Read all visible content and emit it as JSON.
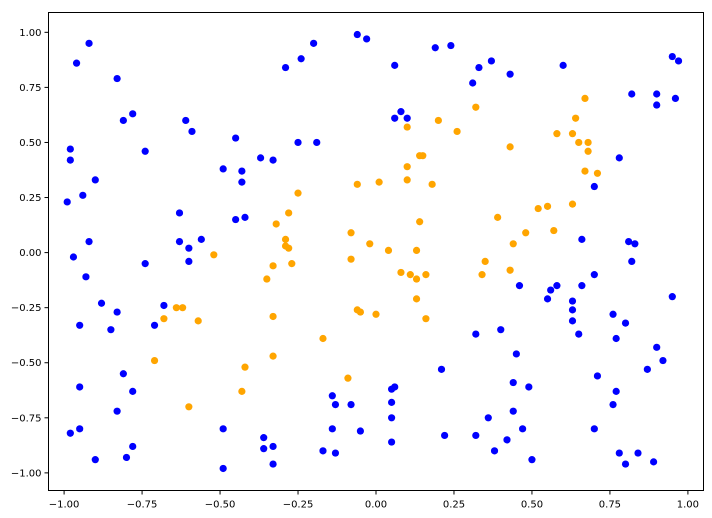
{
  "chart_data": {
    "type": "scatter",
    "title": "",
    "xlabel": "",
    "ylabel": "",
    "xlim": [
      -1.05,
      1.05
    ],
    "ylim": [
      -1.08,
      1.09
    ],
    "grid": false,
    "x_ticks": [
      -1.0,
      -0.75,
      -0.5,
      -0.25,
      0.0,
      0.25,
      0.5,
      0.75,
      1.0
    ],
    "x_tick_labels": [
      "−1.00",
      "−0.75",
      "−0.50",
      "−0.25",
      "0.00",
      "0.25",
      "0.50",
      "0.75",
      "1.00"
    ],
    "y_ticks": [
      -1.0,
      -0.75,
      -0.5,
      -0.25,
      0.0,
      0.25,
      0.5,
      0.75,
      1.0
    ],
    "y_tick_labels": [
      "−1.00",
      "−0.75",
      "−0.50",
      "−0.25",
      "0.00",
      "0.25",
      "0.50",
      "0.75",
      "1.00"
    ],
    "series": [
      {
        "color": "#0000ff",
        "points": [
          [
            -0.92,
            0.95
          ],
          [
            -0.96,
            0.86
          ],
          [
            -0.83,
            0.79
          ],
          [
            -0.78,
            0.63
          ],
          [
            -0.81,
            0.6
          ],
          [
            -0.74,
            0.46
          ],
          [
            -0.98,
            0.47
          ],
          [
            -0.98,
            0.42
          ],
          [
            -0.9,
            0.33
          ],
          [
            -0.94,
            0.26
          ],
          [
            -0.99,
            0.23
          ],
          [
            -0.92,
            0.05
          ],
          [
            -0.97,
            -0.02
          ],
          [
            -0.93,
            -0.11
          ],
          [
            -0.88,
            -0.23
          ],
          [
            -0.83,
            -0.27
          ],
          [
            -0.95,
            -0.33
          ],
          [
            -0.85,
            -0.35
          ],
          [
            -0.74,
            -0.05
          ],
          [
            -0.68,
            -0.24
          ],
          [
            -0.71,
            -0.33
          ],
          [
            -0.81,
            -0.55
          ],
          [
            -0.78,
            -0.63
          ],
          [
            -0.83,
            -0.72
          ],
          [
            -0.95,
            -0.61
          ],
          [
            -0.95,
            -0.8
          ],
          [
            -0.98,
            -0.82
          ],
          [
            -0.78,
            -0.88
          ],
          [
            -0.8,
            -0.93
          ],
          [
            -0.9,
            -0.94
          ],
          [
            -0.61,
            0.6
          ],
          [
            -0.59,
            0.55
          ],
          [
            -0.49,
            0.38
          ],
          [
            -0.45,
            0.52
          ],
          [
            -0.43,
            0.37
          ],
          [
            -0.43,
            0.32
          ],
          [
            -0.45,
            0.15
          ],
          [
            -0.42,
            0.16
          ],
          [
            -0.63,
            0.18
          ],
          [
            -0.63,
            0.05
          ],
          [
            -0.6,
            0.02
          ],
          [
            -0.56,
            0.06
          ],
          [
            -0.6,
            -0.04
          ],
          [
            -0.37,
            0.43
          ],
          [
            -0.33,
            0.42
          ],
          [
            -0.29,
            0.84
          ],
          [
            -0.24,
            0.88
          ],
          [
            -0.2,
            0.95
          ],
          [
            -0.25,
            0.5
          ],
          [
            -0.19,
            0.5
          ],
          [
            -0.06,
            0.99
          ],
          [
            -0.03,
            0.97
          ],
          [
            0.06,
            0.85
          ],
          [
            0.06,
            0.61
          ],
          [
            0.08,
            0.64
          ],
          [
            0.1,
            0.61
          ],
          [
            0.19,
            0.93
          ],
          [
            0.24,
            0.94
          ],
          [
            0.31,
            0.77
          ],
          [
            0.33,
            0.84
          ],
          [
            0.37,
            0.87
          ],
          [
            0.43,
            0.81
          ],
          [
            0.6,
            0.85
          ],
          [
            0.82,
            0.72
          ],
          [
            0.9,
            0.72
          ],
          [
            0.9,
            0.67
          ],
          [
            0.95,
            0.89
          ],
          [
            0.97,
            0.87
          ],
          [
            0.96,
            0.7
          ],
          [
            0.78,
            0.43
          ],
          [
            0.7,
            0.3
          ],
          [
            0.81,
            0.05
          ],
          [
            0.83,
            0.04
          ],
          [
            0.82,
            -0.04
          ],
          [
            0.66,
            0.06
          ],
          [
            0.7,
            -0.1
          ],
          [
            0.66,
            -0.15
          ],
          [
            0.58,
            -0.15
          ],
          [
            0.56,
            -0.17
          ],
          [
            0.55,
            -0.21
          ],
          [
            0.63,
            -0.22
          ],
          [
            0.63,
            -0.26
          ],
          [
            0.63,
            -0.31
          ],
          [
            0.65,
            -0.37
          ],
          [
            0.76,
            -0.28
          ],
          [
            0.8,
            -0.32
          ],
          [
            0.77,
            -0.39
          ],
          [
            0.46,
            -0.15
          ],
          [
            0.4,
            -0.35
          ],
          [
            0.32,
            -0.37
          ],
          [
            0.45,
            -0.46
          ],
          [
            0.21,
            -0.53
          ],
          [
            0.44,
            -0.59
          ],
          [
            0.49,
            -0.61
          ],
          [
            0.71,
            -0.56
          ],
          [
            0.77,
            -0.63
          ],
          [
            0.76,
            -0.69
          ],
          [
            0.9,
            -0.43
          ],
          [
            0.92,
            -0.49
          ],
          [
            0.87,
            -0.53
          ],
          [
            0.95,
            -0.2
          ],
          [
            0.44,
            -0.72
          ],
          [
            0.36,
            -0.75
          ],
          [
            0.47,
            -0.8
          ],
          [
            0.42,
            -0.85
          ],
          [
            0.32,
            -0.83
          ],
          [
            0.38,
            -0.9
          ],
          [
            0.5,
            -0.94
          ],
          [
            0.22,
            -0.83
          ],
          [
            0.7,
            -0.8
          ],
          [
            0.78,
            -0.91
          ],
          [
            0.8,
            -0.96
          ],
          [
            0.84,
            -0.91
          ],
          [
            0.89,
            -0.95
          ],
          [
            0.05,
            -0.62
          ],
          [
            0.06,
            -0.61
          ],
          [
            0.05,
            -0.68
          ],
          [
            0.05,
            -0.75
          ],
          [
            0.05,
            -0.86
          ],
          [
            -0.14,
            -0.65
          ],
          [
            -0.13,
            -0.69
          ],
          [
            -0.08,
            -0.69
          ],
          [
            -0.14,
            -0.8
          ],
          [
            -0.05,
            -0.81
          ],
          [
            -0.17,
            -0.9
          ],
          [
            -0.13,
            -0.91
          ],
          [
            -0.36,
            -0.84
          ],
          [
            -0.36,
            -0.89
          ],
          [
            -0.33,
            -0.88
          ],
          [
            -0.33,
            -0.96
          ],
          [
            -0.49,
            -0.8
          ],
          [
            -0.49,
            -0.98
          ]
        ]
      },
      {
        "color": "#ffa500",
        "points": [
          [
            0.67,
            0.7
          ],
          [
            0.32,
            0.66
          ],
          [
            0.64,
            0.61
          ],
          [
            0.1,
            0.57
          ],
          [
            0.2,
            0.6
          ],
          [
            0.26,
            0.55
          ],
          [
            0.58,
            0.54
          ],
          [
            0.63,
            0.54
          ],
          [
            0.68,
            0.5
          ],
          [
            0.65,
            0.5
          ],
          [
            0.68,
            0.46
          ],
          [
            0.43,
            0.48
          ],
          [
            0.14,
            0.44
          ],
          [
            0.15,
            0.44
          ],
          [
            0.1,
            0.39
          ],
          [
            0.1,
            0.33
          ],
          [
            0.18,
            0.31
          ],
          [
            0.01,
            0.32
          ],
          [
            -0.06,
            0.31
          ],
          [
            0.67,
            0.37
          ],
          [
            0.71,
            0.36
          ],
          [
            0.52,
            0.2
          ],
          [
            0.55,
            0.21
          ],
          [
            0.63,
            0.22
          ],
          [
            0.39,
            0.16
          ],
          [
            0.14,
            0.14
          ],
          [
            -0.25,
            0.27
          ],
          [
            -0.28,
            0.18
          ],
          [
            -0.32,
            0.13
          ],
          [
            -0.29,
            0.06
          ],
          [
            -0.29,
            0.03
          ],
          [
            -0.28,
            0.02
          ],
          [
            -0.08,
            0.09
          ],
          [
            -0.02,
            0.04
          ],
          [
            0.04,
            0.01
          ],
          [
            0.13,
            0.01
          ],
          [
            0.44,
            0.04
          ],
          [
            0.48,
            0.09
          ],
          [
            0.57,
            0.1
          ],
          [
            -0.52,
            -0.01
          ],
          [
            -0.27,
            -0.05
          ],
          [
            -0.33,
            -0.06
          ],
          [
            -0.35,
            -0.12
          ],
          [
            -0.08,
            -0.03
          ],
          [
            0.08,
            -0.09
          ],
          [
            0.11,
            -0.1
          ],
          [
            0.13,
            -0.12
          ],
          [
            0.16,
            -0.1
          ],
          [
            0.35,
            -0.04
          ],
          [
            0.34,
            -0.1
          ],
          [
            0.43,
            -0.08
          ],
          [
            -0.62,
            -0.25
          ],
          [
            -0.64,
            -0.25
          ],
          [
            -0.68,
            -0.3
          ],
          [
            -0.57,
            -0.31
          ],
          [
            -0.33,
            -0.29
          ],
          [
            -0.06,
            -0.26
          ],
          [
            -0.05,
            -0.27
          ],
          [
            0.0,
            -0.28
          ],
          [
            0.13,
            -0.21
          ],
          [
            0.16,
            -0.3
          ],
          [
            -0.17,
            -0.39
          ],
          [
            -0.33,
            -0.47
          ],
          [
            -0.71,
            -0.49
          ],
          [
            -0.42,
            -0.52
          ],
          [
            -0.09,
            -0.57
          ],
          [
            -0.43,
            -0.63
          ],
          [
            -0.6,
            -0.7
          ]
        ]
      }
    ]
  }
}
